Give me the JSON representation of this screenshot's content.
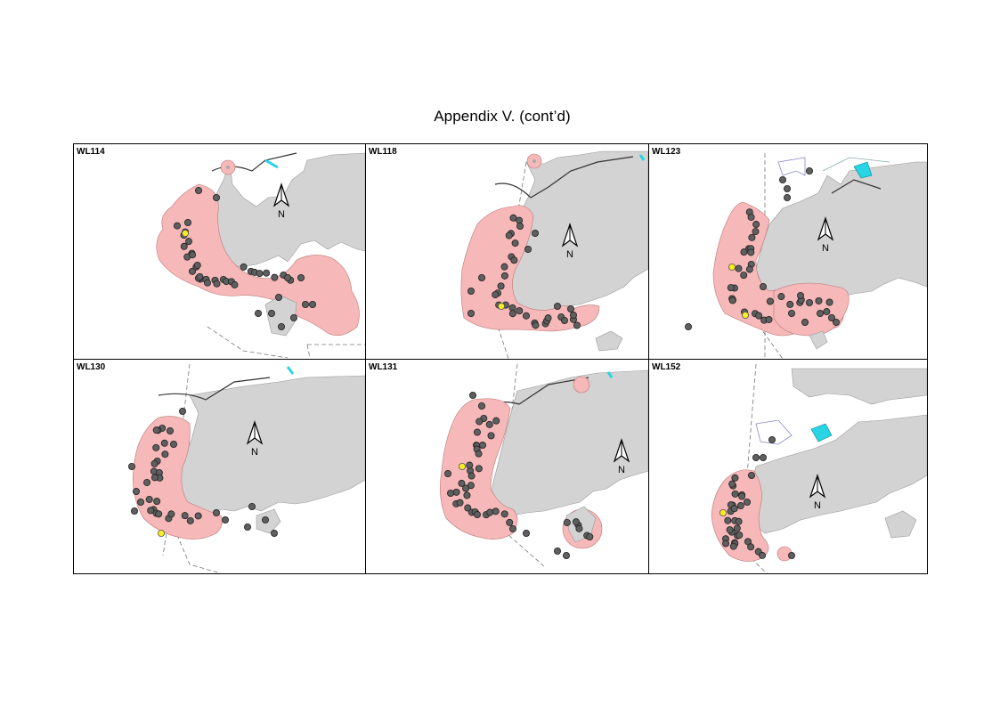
{
  "page": {
    "title": "Appendix V.  (cont’d)"
  },
  "colors": {
    "land": "#d3d3d3",
    "range": "#f6b8b8",
    "sighting": "#5f5f5f",
    "highlight": "#f6ee22",
    "reclamation": "#29d4e4"
  },
  "north_arrow_label": "N",
  "panels": [
    {
      "id": "WL114",
      "label": "WL114"
    },
    {
      "id": "WL118",
      "label": "WL118"
    },
    {
      "id": "WL123",
      "label": "WL123"
    },
    {
      "id": "WL130",
      "label": "WL130"
    },
    {
      "id": "WL131",
      "label": "WL131"
    },
    {
      "id": "WL152",
      "label": "WL152"
    }
  ]
}
